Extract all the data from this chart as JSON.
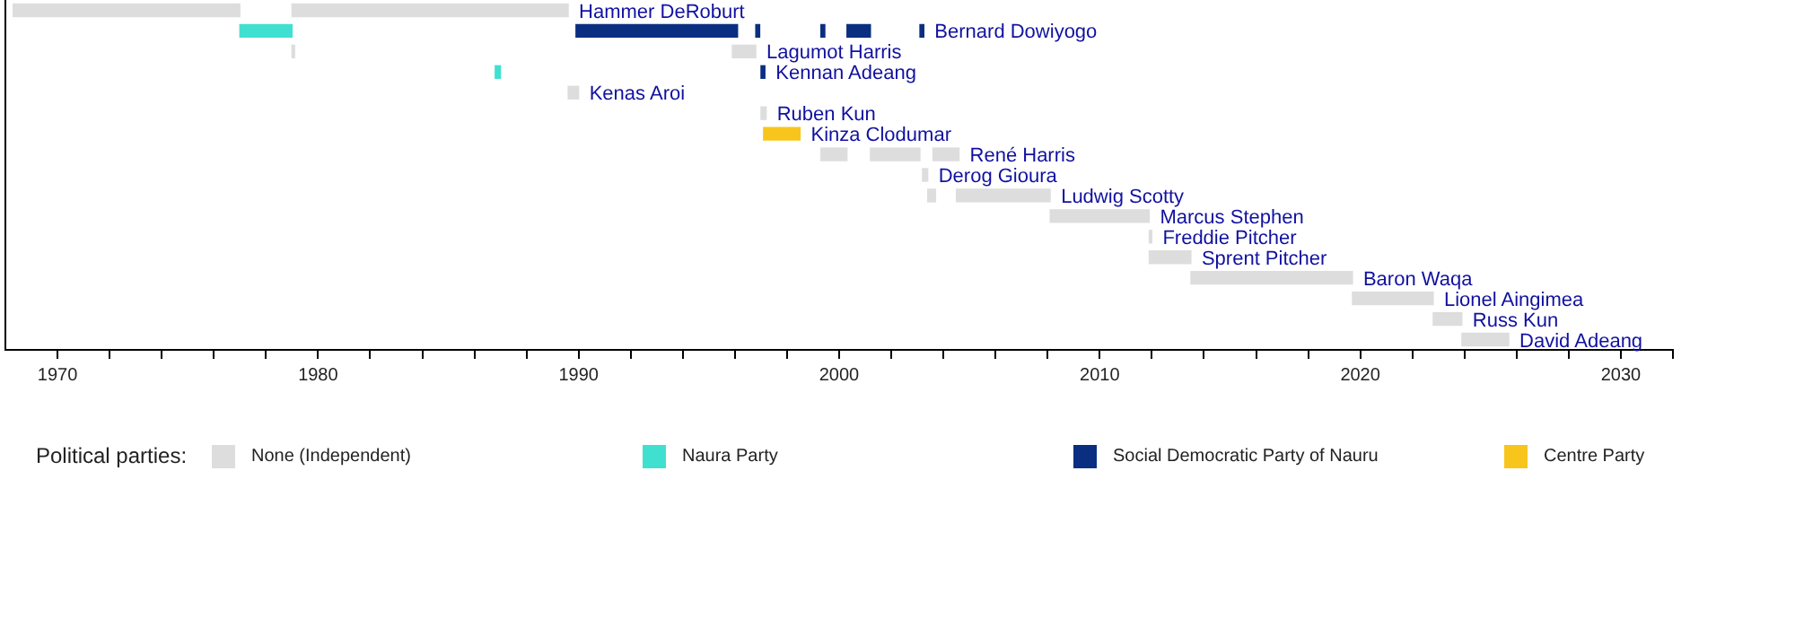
{
  "chart_data": {
    "type": "bar",
    "orientation": "horizontal",
    "legend_title": "Political parties:",
    "legend": "bottom",
    "tick_labels": "x",
    "categories": [
      "Hammer DeRoburt",
      "Bernard Dowiyogo",
      "Lagumot Harris",
      "Kennan Adeang",
      "Kenas Aroi",
      "Ruben Kun",
      "Kinza Clodumar",
      "René Harris",
      "Derog Gioura",
      "Ludwig Scotty",
      "Marcus Stephen",
      "Freddie Pitcher",
      "Sprent Pitcher",
      "Baron Waqa",
      "Lionel Aingimea",
      "Russ Kun",
      "David Adeang"
    ],
    "xlim": [
      1968,
      2032
    ],
    "xticks": [
      1970,
      {
        "value": 1972,
        "label": null
      },
      {
        "value": 1974,
        "label": null
      },
      {
        "value": 1976,
        "label": null
      },
      {
        "value": 1978,
        "label": null
      },
      1980,
      {
        "value": 1982,
        "label": null
      },
      {
        "value": 1984,
        "label": null
      },
      {
        "value": 1986,
        "label": null
      },
      {
        "value": 1988,
        "label": null
      },
      1990,
      {
        "value": 1992,
        "label": null
      },
      {
        "value": 1994,
        "label": null
      },
      {
        "value": 1996,
        "label": null
      },
      {
        "value": 1998,
        "label": null
      },
      2000,
      {
        "value": 2002,
        "label": null
      },
      {
        "value": 2004,
        "label": null
      },
      {
        "value": 2006,
        "label": null
      },
      {
        "value": 2008,
        "label": null
      },
      2010,
      {
        "value": 2012,
        "label": null
      },
      {
        "value": 2014,
        "label": null
      },
      {
        "value": 2016,
        "label": null
      },
      {
        "value": 2018,
        "label": null
      },
      2020,
      {
        "value": 2022,
        "label": null
      },
      {
        "value": 2024,
        "label": null
      },
      {
        "value": 2026,
        "label": null
      },
      {
        "value": 2028,
        "label": null
      },
      2030,
      {
        "value": 2032,
        "label": null
      }
    ],
    "series": [
      {
        "name": "None (Independent)",
        "color": "#dddddd",
        "values": [
          8.7,
          null,
          0.1,
          null,
          0.4,
          0.2,
          null,
          1.0,
          0.2,
          0.3,
          3.8,
          0.1,
          1.6,
          6.2,
          3.1,
          1.1,
          1.8
        ],
        "base": [
          1968.3,
          null,
          1979.0,
          null,
          1989.6,
          1997.0,
          null,
          1999.3,
          2003.2,
          2003.4,
          2008.1,
          2011.9,
          2011.9,
          2013.5,
          2019.7,
          2022.8,
          2023.9
        ]
      },
      {
        "name": "Naura Party",
        "color": "#40e0d0",
        "values": [
          null,
          2.0,
          null,
          0.2,
          null,
          null,
          null,
          null,
          null,
          null,
          null,
          null,
          null,
          null,
          null,
          null,
          null
        ],
        "base": [
          null,
          1977.0,
          null,
          1986.8,
          null,
          null,
          null,
          null,
          null,
          null,
          null,
          null,
          null,
          null,
          null,
          null,
          null
        ]
      },
      {
        "name": "Social Democratic Party of Nauru",
        "color": "#0a2f80",
        "values": [
          null,
          6.2,
          null,
          0.15,
          null,
          null,
          null,
          null,
          null,
          null,
          null,
          null,
          null,
          null,
          null,
          null,
          null
        ],
        "base": [
          null,
          1989.9,
          null,
          1997.0,
          null,
          null,
          null,
          null,
          null,
          null,
          null,
          null,
          null,
          null,
          null,
          null,
          null
        ]
      },
      {
        "name": "Centre Party",
        "color": "#f8c51c",
        "values": [
          null,
          null,
          null,
          null,
          null,
          null,
          1.4,
          null,
          null,
          null,
          null,
          null,
          null,
          null,
          null,
          null,
          null
        ],
        "base": [
          null,
          null,
          null,
          null,
          null,
          null,
          1997.1,
          null,
          null,
          null,
          null,
          null,
          null,
          null,
          null,
          null,
          null
        ]
      },
      {
        "color": "#dddddd",
        "values": [
          10.6,
          null,
          0.9,
          null,
          null,
          null,
          null,
          1.9,
          null,
          3.6,
          null,
          null,
          null,
          null,
          null,
          null,
          null
        ],
        "base": [
          1979.0,
          null,
          1995.9,
          null,
          null,
          null,
          null,
          2001.2,
          null,
          2004.5,
          null,
          null,
          null,
          null,
          null,
          null,
          null
        ]
      },
      {
        "color": "#dddddd",
        "values": [
          null,
          null,
          null,
          null,
          null,
          null,
          null,
          1.0,
          null,
          null,
          null,
          null,
          null,
          null,
          null,
          null,
          null
        ],
        "base": [
          null,
          null,
          null,
          null,
          null,
          null,
          null,
          2003.6,
          null,
          null,
          null,
          null,
          null,
          null,
          null,
          null,
          null
        ]
      },
      {
        "color": "#0a2f80",
        "values": [
          null,
          0.15,
          null,
          null,
          null,
          null,
          null,
          null,
          null,
          null,
          null,
          null,
          null,
          null,
          null,
          null,
          null
        ],
        "base": [
          null,
          1996.8,
          null,
          null,
          null,
          null,
          null,
          null,
          null,
          null,
          null,
          null,
          null,
          null,
          null,
          null,
          null
        ]
      },
      {
        "color": "#0a2f80",
        "values": [
          null,
          0.15,
          null,
          null,
          null,
          null,
          null,
          null,
          null,
          null,
          null,
          null,
          null,
          null,
          null,
          null,
          null
        ],
        "base": [
          null,
          1999.3,
          null,
          null,
          null,
          null,
          null,
          null,
          null,
          null,
          null,
          null,
          null,
          null,
          null,
          null,
          null
        ]
      },
      {
        "color": "#0a2f80",
        "values": [
          null,
          0.9,
          null,
          null,
          null,
          null,
          null,
          null,
          null,
          null,
          null,
          null,
          null,
          null,
          null,
          null,
          null
        ],
        "base": [
          null,
          2000.3,
          null,
          null,
          null,
          null,
          null,
          null,
          null,
          null,
          null,
          null,
          null,
          null,
          null,
          null,
          null
        ]
      },
      {
        "color": "#0a2f80",
        "values": [
          null,
          0.15,
          null,
          null,
          null,
          null,
          null,
          null,
          null,
          null,
          null,
          null,
          null,
          null,
          null,
          null,
          null
        ],
        "base": [
          null,
          2003.1,
          null,
          null,
          null,
          null,
          null,
          null,
          null,
          null,
          null,
          null,
          null,
          null,
          null,
          null,
          null
        ]
      }
    ]
  }
}
